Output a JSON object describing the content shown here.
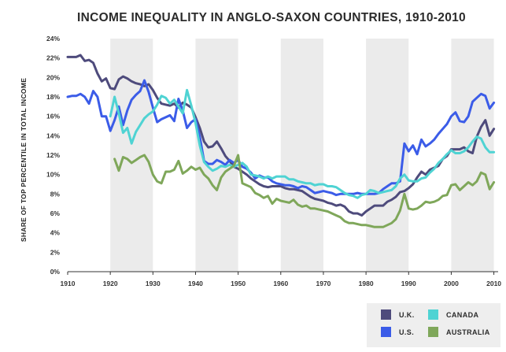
{
  "chart_data": {
    "type": "line",
    "title": "INCOME INEQUALITY IN ANGLO-SAXON COUNTRIES, 1910-2010",
    "xlabel": "",
    "ylabel": "SHARE OF TOP PERCENTILE IN TOTAL INCOME",
    "xlim": [
      1910,
      2011
    ],
    "ylim": [
      0,
      24
    ],
    "x_ticks": [
      1910,
      1920,
      1930,
      1940,
      1950,
      1960,
      1970,
      1980,
      1990,
      2000,
      2010
    ],
    "y_ticks": [
      "0%",
      "2%",
      "4%",
      "6%",
      "8%",
      "10%",
      "12%",
      "14%",
      "16%",
      "18%",
      "20%",
      "22%",
      "24%"
    ],
    "shaded_decades": [
      [
        1920,
        1930
      ],
      [
        1940,
        1950
      ],
      [
        1960,
        1970
      ],
      [
        1980,
        1990
      ],
      [
        2000,
        2010
      ]
    ],
    "series": [
      {
        "name": "U.K.",
        "color": "#4e4b7c",
        "x": [
          1910,
          1911,
          1912,
          1913,
          1914,
          1915,
          1916,
          1917,
          1918,
          1919,
          1920,
          1921,
          1922,
          1923,
          1924,
          1925,
          1926,
          1927,
          1928,
          1929,
          1930,
          1931,
          1932,
          1933,
          1934,
          1935,
          1936,
          1937,
          1938,
          1939,
          1940,
          1941,
          1942,
          1943,
          1944,
          1945,
          1946,
          1947,
          1948,
          1949,
          1950,
          1951,
          1952,
          1953,
          1954,
          1955,
          1956,
          1957,
          1958,
          1959,
          1960,
          1961,
          1962,
          1963,
          1964,
          1965,
          1966,
          1967,
          1968,
          1969,
          1970,
          1971,
          1972,
          1973,
          1974,
          1975,
          1976,
          1977,
          1978,
          1979,
          1980,
          1981,
          1982,
          1983,
          1984,
          1985,
          1986,
          1987,
          1988,
          1989,
          1990,
          1991,
          1992,
          1993,
          1994,
          1995,
          1996,
          1997,
          1998,
          1999,
          2000,
          2001,
          2002,
          2003,
          2004,
          2005,
          2006,
          2007,
          2008,
          2009,
          2010
        ],
        "values": [
          22.1,
          22.1,
          22.1,
          22.3,
          21.7,
          21.8,
          21.5,
          20.4,
          19.6,
          19.9,
          18.9,
          18.8,
          19.8,
          20.1,
          19.9,
          19.6,
          19.4,
          19.3,
          19.1,
          19.3,
          18.7,
          17.9,
          17.3,
          17.2,
          17.1,
          17.3,
          16.9,
          17.4,
          17.2,
          16.9,
          15.9,
          14.8,
          13.4,
          12.8,
          12.9,
          13.4,
          12.7,
          11.9,
          11.4,
          10.8,
          10.6,
          10.3,
          10.0,
          9.6,
          9.3,
          9.0,
          8.8,
          8.7,
          8.8,
          8.8,
          8.8,
          8.6,
          8.5,
          8.5,
          8.4,
          8.3,
          8.0,
          7.7,
          7.5,
          7.4,
          7.3,
          7.1,
          7.0,
          6.8,
          6.9,
          6.7,
          6.2,
          6.0,
          6.0,
          5.8,
          6.2,
          6.5,
          6.8,
          6.8,
          6.8,
          7.2,
          7.4,
          7.7,
          8.2,
          8.3,
          8.6,
          9.0,
          9.7,
          10.3,
          10.0,
          10.5,
          10.7,
          10.9,
          11.6,
          11.9,
          12.6,
          12.6,
          12.6,
          12.8,
          12.4,
          12.2,
          13.9,
          14.9,
          15.6,
          14.0,
          14.7
        ]
      },
      {
        "name": "U.S.",
        "color": "#3b5ce8",
        "x": [
          1910,
          1911,
          1912,
          1913,
          1914,
          1915,
          1916,
          1917,
          1918,
          1919,
          1920,
          1921,
          1922,
          1923,
          1924,
          1925,
          1926,
          1927,
          1928,
          1929,
          1930,
          1931,
          1932,
          1933,
          1934,
          1935,
          1936,
          1937,
          1938,
          1939,
          1940,
          1941,
          1942,
          1943,
          1944,
          1945,
          1946,
          1947,
          1948,
          1949,
          1950,
          1951,
          1952,
          1953,
          1954,
          1955,
          1956,
          1957,
          1958,
          1959,
          1960,
          1961,
          1962,
          1963,
          1964,
          1965,
          1966,
          1967,
          1968,
          1969,
          1970,
          1971,
          1972,
          1973,
          1974,
          1975,
          1976,
          1977,
          1978,
          1979,
          1980,
          1981,
          1982,
          1983,
          1984,
          1985,
          1986,
          1987,
          1988,
          1989,
          1990,
          1991,
          1992,
          1993,
          1994,
          1995,
          1996,
          1997,
          1998,
          1999,
          2000,
          2001,
          2002,
          2003,
          2004,
          2005,
          2006,
          2007,
          2008,
          2009,
          2010
        ],
        "values": [
          18.0,
          18.1,
          18.1,
          18.3,
          18.0,
          17.3,
          18.6,
          18.0,
          16.0,
          16.0,
          14.5,
          15.6,
          17.0,
          15.1,
          16.6,
          17.7,
          18.2,
          18.6,
          19.7,
          18.5,
          16.9,
          15.4,
          15.7,
          15.9,
          16.1,
          15.5,
          17.8,
          16.6,
          14.8,
          15.4,
          15.7,
          13.9,
          11.4,
          11.1,
          11.1,
          11.5,
          11.3,
          11.0,
          11.5,
          11.2,
          11.5,
          10.8,
          10.6,
          10.2,
          9.6,
          9.9,
          9.7,
          9.7,
          9.3,
          9.1,
          9.0,
          8.9,
          8.9,
          8.8,
          8.6,
          8.8,
          8.7,
          8.4,
          8.1,
          8.2,
          8.3,
          8.2,
          8.1,
          7.9,
          8.0,
          8.0,
          8.0,
          8.0,
          8.1,
          8.0,
          8.0,
          8.0,
          8.0,
          8.1,
          8.5,
          8.8,
          9.1,
          9.1,
          9.3,
          13.2,
          12.4,
          13.0,
          12.1,
          13.6,
          12.9,
          13.2,
          13.6,
          14.2,
          14.7,
          15.2,
          16.0,
          16.4,
          15.5,
          15.4,
          16.0,
          17.5,
          17.9,
          18.3,
          18.1,
          16.8,
          17.4
        ]
      },
      {
        "name": "CANADA",
        "color": "#4fd3d3",
        "x": [
          1920,
          1921,
          1922,
          1923,
          1924,
          1925,
          1926,
          1927,
          1928,
          1929,
          1930,
          1931,
          1932,
          1933,
          1934,
          1935,
          1936,
          1937,
          1938,
          1939,
          1940,
          1941,
          1942,
          1943,
          1944,
          1945,
          1946,
          1947,
          1948,
          1949,
          1950,
          1951,
          1952,
          1953,
          1954,
          1955,
          1956,
          1957,
          1958,
          1959,
          1960,
          1961,
          1962,
          1963,
          1964,
          1965,
          1966,
          1967,
          1968,
          1969,
          1970,
          1971,
          1972,
          1973,
          1974,
          1975,
          1976,
          1977,
          1978,
          1979,
          1980,
          1981,
          1982,
          1983,
          1984,
          1985,
          1986,
          1987,
          1988,
          1989,
          1990,
          1991,
          1992,
          1993,
          1994,
          1995,
          1996,
          1997,
          1998,
          1999,
          2000,
          2001,
          2002,
          2003,
          2004,
          2005,
          2006,
          2007,
          2008,
          2009,
          2010
        ],
        "values": [
          16.0,
          18.0,
          16.3,
          14.3,
          14.8,
          13.2,
          14.4,
          15.1,
          15.8,
          16.2,
          16.5,
          17.2,
          18.1,
          17.9,
          17.3,
          17.7,
          17.0,
          16.3,
          18.7,
          17.1,
          15.3,
          13.0,
          11.3,
          10.8,
          10.4,
          10.6,
          10.9,
          10.8,
          11.0,
          10.8,
          11.0,
          11.2,
          10.8,
          10.0,
          9.9,
          9.8,
          9.6,
          9.8,
          9.6,
          9.8,
          9.8,
          9.8,
          9.5,
          9.5,
          9.3,
          9.2,
          9.1,
          9.1,
          8.9,
          9.0,
          9.0,
          8.8,
          8.8,
          8.7,
          8.4,
          8.1,
          7.9,
          7.8,
          7.6,
          7.9,
          8.0,
          8.4,
          8.3,
          8.1,
          8.2,
          8.3,
          8.4,
          8.8,
          9.6,
          10.0,
          9.4,
          9.3,
          9.3,
          9.6,
          9.7,
          10.2,
          10.6,
          11.2,
          11.6,
          12.1,
          12.5,
          12.2,
          12.2,
          12.4,
          12.8,
          13.4,
          13.9,
          13.7,
          12.8,
          12.3,
          12.3
        ]
      },
      {
        "name": "AUSTRALIA",
        "color": "#7fa75a",
        "x": [
          1921,
          1922,
          1923,
          1924,
          1925,
          1926,
          1927,
          1928,
          1929,
          1930,
          1931,
          1932,
          1933,
          1934,
          1935,
          1936,
          1937,
          1938,
          1939,
          1940,
          1941,
          1942,
          1943,
          1944,
          1945,
          1946,
          1947,
          1948,
          1949,
          1950,
          1951,
          1952,
          1953,
          1954,
          1955,
          1956,
          1957,
          1958,
          1959,
          1960,
          1961,
          1962,
          1963,
          1964,
          1965,
          1966,
          1967,
          1968,
          1969,
          1970,
          1971,
          1972,
          1973,
          1974,
          1975,
          1976,
          1977,
          1978,
          1979,
          1980,
          1981,
          1982,
          1983,
          1984,
          1985,
          1986,
          1987,
          1988,
          1989,
          1990,
          1991,
          1992,
          1993,
          1994,
          1995,
          1996,
          1997,
          1998,
          1999,
          2000,
          2001,
          2002,
          2003,
          2004,
          2005,
          2006,
          2007,
          2008,
          2009,
          2010
        ],
        "values": [
          11.6,
          10.4,
          11.8,
          11.6,
          11.2,
          11.5,
          11.8,
          12.0,
          11.3,
          10.0,
          9.3,
          9.1,
          10.3,
          10.3,
          10.5,
          11.4,
          10.1,
          10.4,
          10.8,
          10.5,
          10.7,
          10.0,
          9.6,
          8.9,
          8.4,
          9.7,
          10.3,
          10.6,
          10.9,
          12.0,
          9.1,
          8.9,
          8.7,
          8.1,
          7.9,
          7.6,
          7.8,
          7.0,
          7.5,
          7.3,
          7.2,
          7.1,
          7.4,
          6.9,
          6.7,
          6.8,
          6.5,
          6.5,
          6.4,
          6.3,
          6.2,
          6.0,
          5.8,
          5.6,
          5.2,
          5.0,
          5.0,
          4.9,
          4.8,
          4.8,
          4.7,
          4.6,
          4.6,
          4.6,
          4.8,
          5.0,
          5.4,
          6.3,
          8.0,
          6.5,
          6.4,
          6.5,
          6.8,
          7.2,
          7.1,
          7.2,
          7.4,
          7.8,
          7.9,
          8.9,
          9.0,
          8.4,
          8.8,
          9.2,
          8.9,
          9.3,
          10.2,
          10.0,
          8.5,
          9.2
        ]
      }
    ],
    "legend": {
      "position": "bottom-right",
      "entries": [
        "U.K.",
        "CANADA",
        "U.S.",
        "AUSTRALIA"
      ],
      "background": "#eeeeee"
    }
  }
}
